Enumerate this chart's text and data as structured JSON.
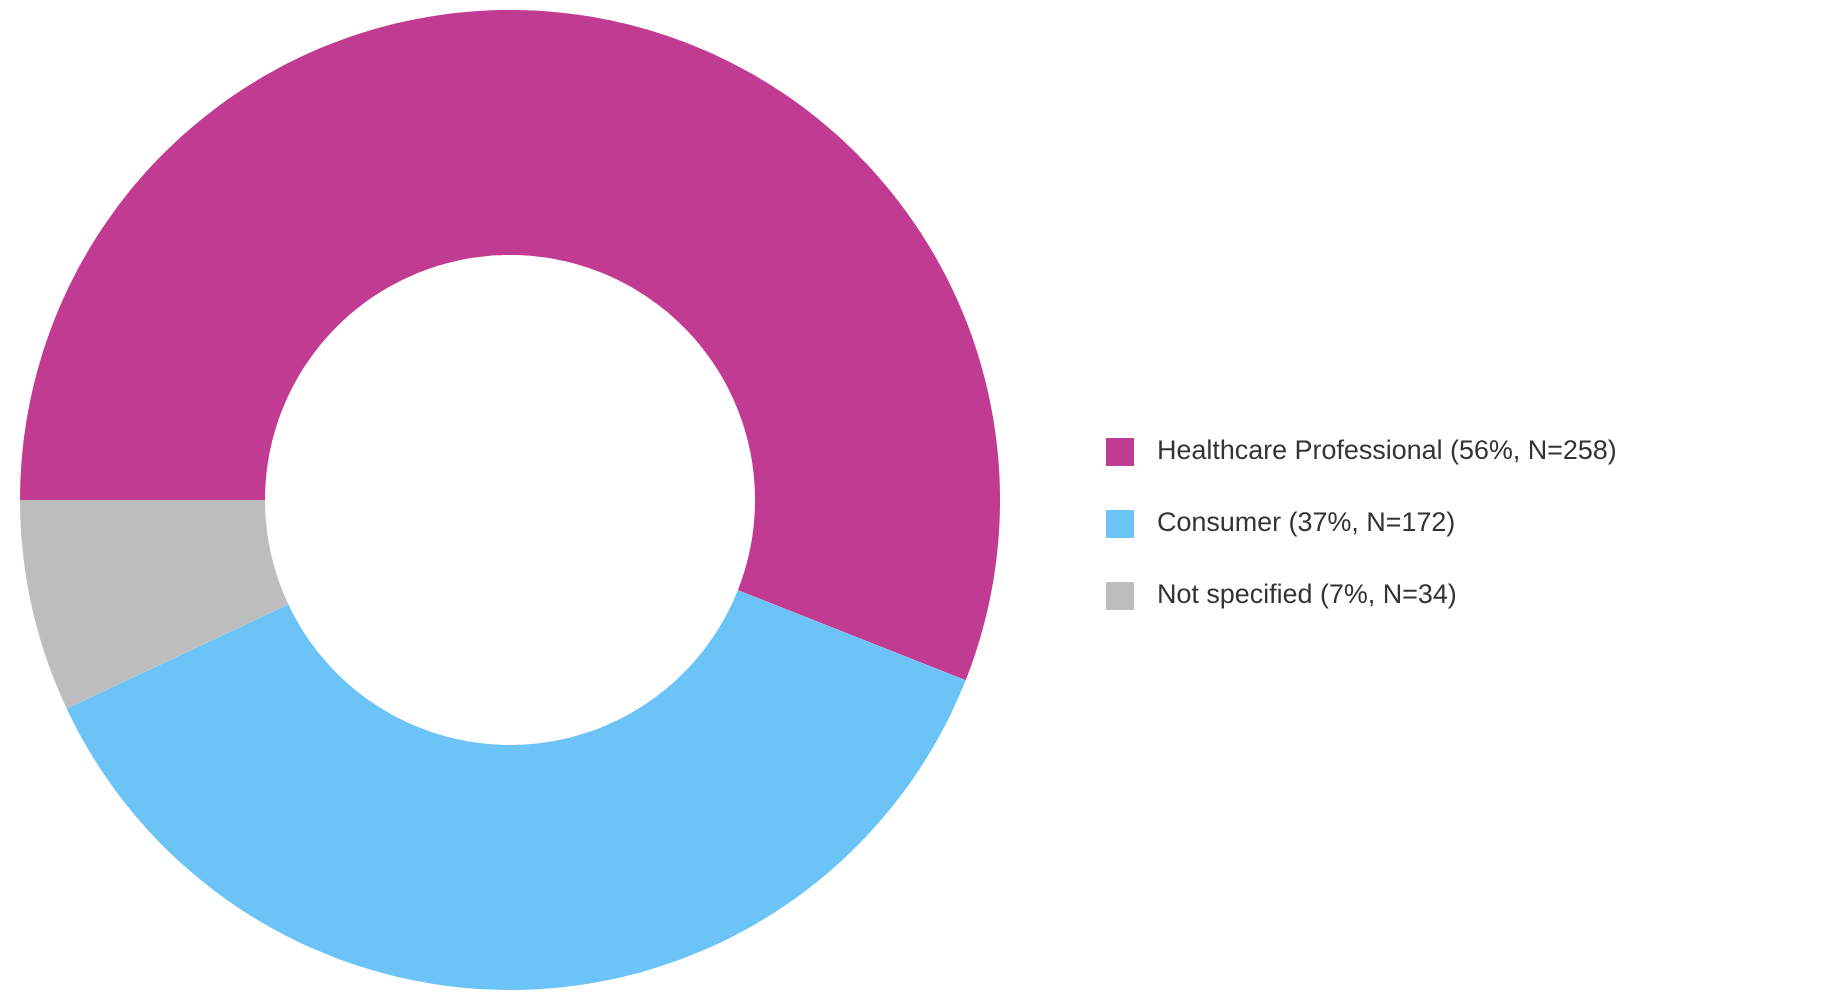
{
  "chart_data": {
    "type": "donut",
    "categories": [
      "Healthcare Professional (56%, N=258)",
      "Consumer (37%, N=172)",
      "Not specified (7%, N=34)"
    ],
    "values": [
      56,
      37,
      7
    ],
    "colors": [
      "#c13b93",
      "#6bc4f5",
      "#bdbdbd"
    ],
    "legend": "right"
  }
}
